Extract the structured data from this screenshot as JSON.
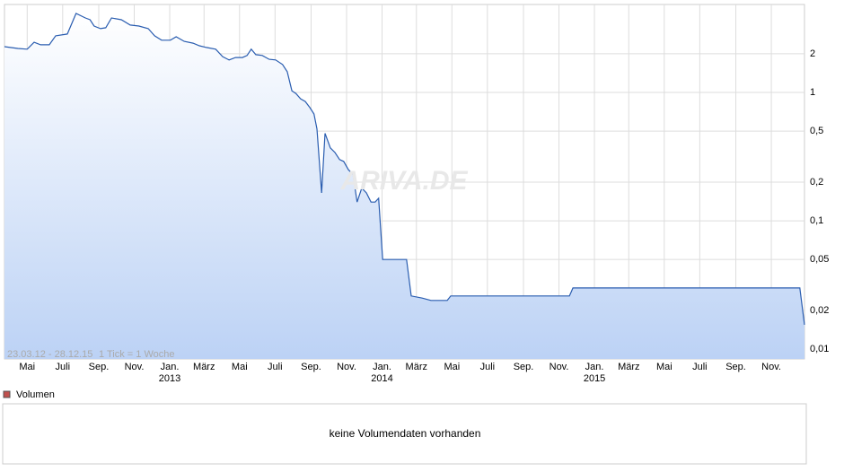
{
  "chart_data": {
    "type": "line",
    "range_label": "23.03.12 - 28.12.15",
    "tick_note": "1 Tick = 1 Woche",
    "watermark": "ARIVA.DE",
    "x": [
      "2012-03-23",
      "2012-04-15",
      "2012-05-01",
      "2012-05-13",
      "2012-05-24",
      "2012-06-08",
      "2012-06-19",
      "2012-07-09",
      "2012-07-24",
      "2012-08-09",
      "2012-08-17",
      "2012-08-24",
      "2012-09-04",
      "2012-09-13",
      "2012-09-23",
      "2012-10-10",
      "2012-10-25",
      "2012-11-09",
      "2012-11-25",
      "2012-12-06",
      "2012-12-18",
      "2013-01-02",
      "2013-01-12",
      "2013-01-26",
      "2013-02-10",
      "2013-02-21",
      "2013-03-05",
      "2013-03-21",
      "2013-04-02",
      "2013-04-13",
      "2013-04-24",
      "2013-05-06",
      "2013-05-14",
      "2013-05-21",
      "2013-05-29",
      "2013-06-09",
      "2013-06-21",
      "2013-07-02",
      "2013-07-14",
      "2013-07-22",
      "2013-07-30",
      "2013-08-06",
      "2013-08-14",
      "2013-08-22",
      "2013-08-30",
      "2013-09-06",
      "2013-09-11",
      "2013-09-19",
      "2013-09-25",
      "2013-10-04",
      "2013-10-12",
      "2013-10-20",
      "2013-10-27",
      "2013-11-04",
      "2013-11-12",
      "2013-11-19",
      "2013-11-27",
      "2013-12-05",
      "2013-12-13",
      "2013-12-20",
      "2013-12-26",
      "2014-01-02",
      "2014-02-12",
      "2014-02-20",
      "2014-03-11",
      "2014-03-26",
      "2014-04-23",
      "2014-04-29",
      "2014-11-19",
      "2014-11-25",
      "2015-12-20",
      "2015-12-28"
    ],
    "series": [
      {
        "color": "#2a5db0",
        "values": [
          2.27,
          2.2,
          2.17,
          2.46,
          2.35,
          2.35,
          2.76,
          2.85,
          4.12,
          3.8,
          3.68,
          3.29,
          3.14,
          3.19,
          3.8,
          3.68,
          3.35,
          3.29,
          3.14,
          2.76,
          2.55,
          2.55,
          2.71,
          2.5,
          2.42,
          2.31,
          2.24,
          2.17,
          1.9,
          1.79,
          1.87,
          1.87,
          1.94,
          2.17,
          1.97,
          1.94,
          1.81,
          1.79,
          1.65,
          1.45,
          1.03,
          0.98,
          0.89,
          0.85,
          0.76,
          0.68,
          0.52,
          0.165,
          0.48,
          0.37,
          0.34,
          0.3,
          0.29,
          0.25,
          0.23,
          0.14,
          0.18,
          0.165,
          0.14,
          0.14,
          0.15,
          0.05,
          0.05,
          0.026,
          0.025,
          0.024,
          0.024,
          0.026,
          0.026,
          0.03,
          0.03,
          0.0155
        ]
      }
    ],
    "xlim": [
      "2012-03-23",
      "2015-12-28"
    ],
    "xticks": [
      {
        "value": "2012-05",
        "label": "Mai"
      },
      {
        "value": "2012-07",
        "label": "Juli"
      },
      {
        "value": "2012-09",
        "label": "Sep."
      },
      {
        "value": "2012-11",
        "label": "Nov."
      },
      {
        "value": "2013-01",
        "label": "Jan."
      },
      {
        "value": "2013-03",
        "label": "März"
      },
      {
        "value": "2013-05",
        "label": "Mai"
      },
      {
        "value": "2013-07",
        "label": "Juli"
      },
      {
        "value": "2013-09",
        "label": "Sep."
      },
      {
        "value": "2013-11",
        "label": "Nov."
      },
      {
        "value": "2014-01",
        "label": "Jan."
      },
      {
        "value": "2014-03",
        "label": "März"
      },
      {
        "value": "2014-05",
        "label": "Mai"
      },
      {
        "value": "2014-07",
        "label": "Juli"
      },
      {
        "value": "2014-09",
        "label": "Sep."
      },
      {
        "value": "2014-11",
        "label": "Nov."
      },
      {
        "value": "2015-01",
        "label": "Jan."
      },
      {
        "value": "2015-03",
        "label": "März"
      },
      {
        "value": "2015-05",
        "label": "Mai"
      },
      {
        "value": "2015-07",
        "label": "Juli"
      },
      {
        "value": "2015-09",
        "label": "Sep."
      },
      {
        "value": "2015-11",
        "label": "Nov."
      }
    ],
    "year_labels": [
      {
        "value": "2013-01",
        "label": "2013"
      },
      {
        "value": "2014-01",
        "label": "2014"
      },
      {
        "value": "2015-01",
        "label": "2015"
      }
    ],
    "ylim": [
      0.0084,
      4.84
    ],
    "log_scale": true,
    "grid": true,
    "yticks": [
      2,
      1,
      {
        "value": 0.5,
        "label": "0,5"
      },
      {
        "value": 0.2,
        "label": "0,2"
      },
      {
        "value": 0.1,
        "label": "0,1"
      },
      {
        "value": 0.05,
        "label": "0,05"
      },
      {
        "value": 0.02,
        "label": "0,02"
      },
      {
        "value": 0.01,
        "label": "0,01"
      }
    ]
  },
  "volume_panel": {
    "legend": "Volumen",
    "color": "#c0504d",
    "message": "keine Volumendaten vorhanden"
  }
}
